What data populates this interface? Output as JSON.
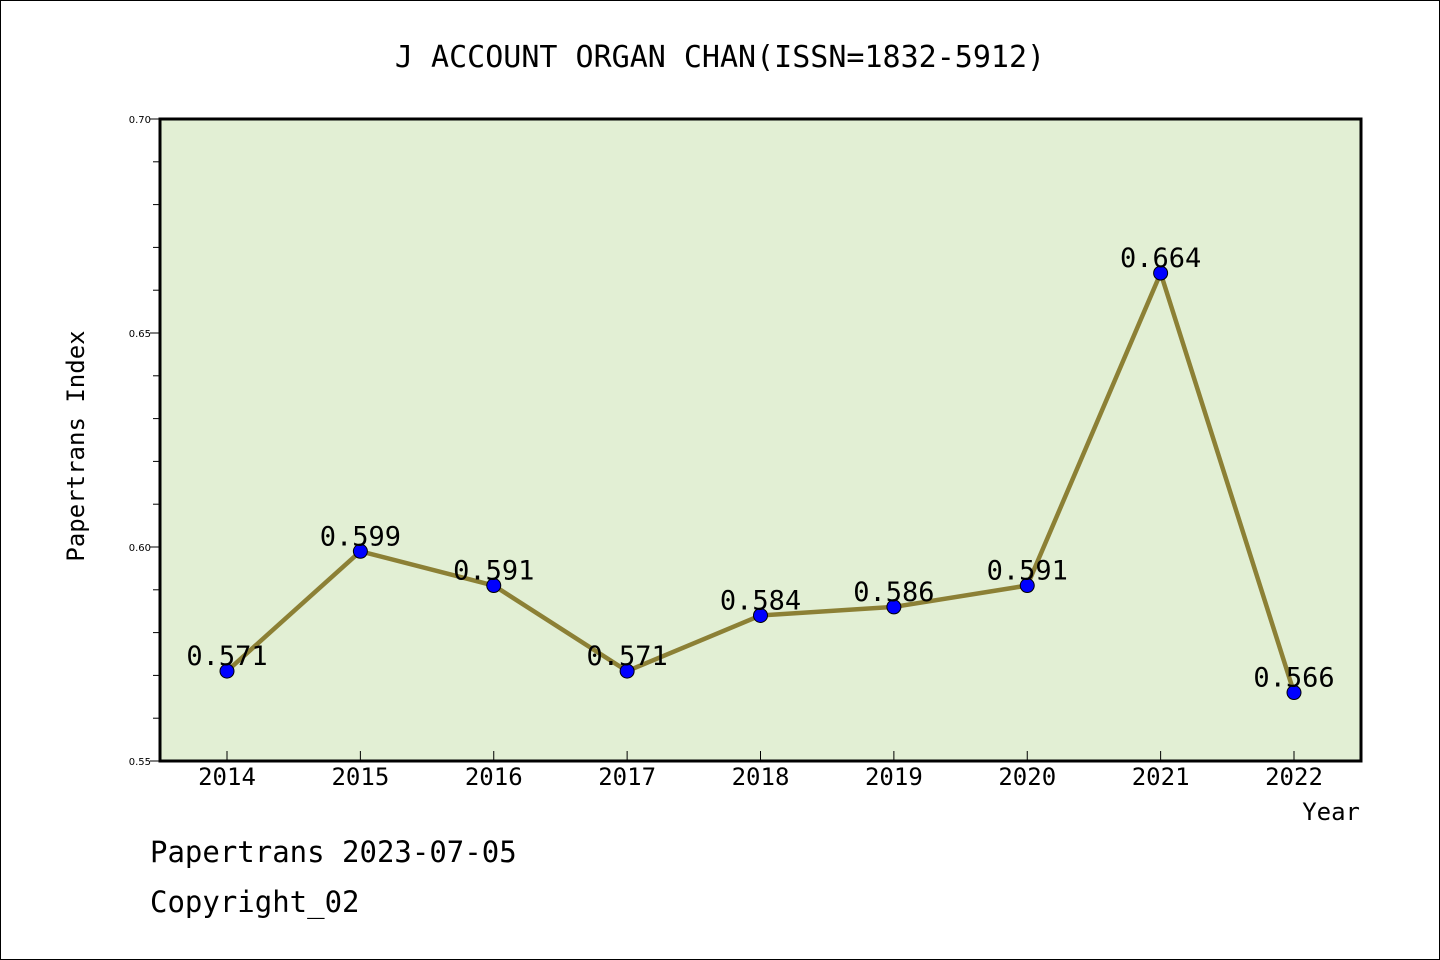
{
  "footer": {
    "line1": "Papertrans 2023-07-05",
    "line2": "Copyright_02"
  },
  "chart_data": {
    "type": "line",
    "title": "J ACCOUNT ORGAN CHAN(ISSN=1832-5912)",
    "xlabel": "Year",
    "ylabel": "Papertrans Index",
    "categories": [
      "2014",
      "2015",
      "2016",
      "2017",
      "2018",
      "2019",
      "2020",
      "2021",
      "2022"
    ],
    "series": [
      {
        "name": "Papertrans Index",
        "values": [
          0.571,
          0.599,
          0.591,
          0.571,
          0.584,
          0.586,
          0.591,
          0.664,
          0.566
        ],
        "labels": [
          "0.571",
          "0.599",
          "0.591",
          "0.571",
          "0.584",
          "0.586",
          "0.591",
          "0.664",
          "0.566"
        ]
      }
    ],
    "ylim": [
      0.55,
      0.7
    ],
    "yticks": [
      0.55,
      0.6,
      0.65,
      0.7
    ],
    "ytick_labels": [
      "0.55",
      "0.60",
      "0.65",
      "0.70"
    ],
    "minor_ytick_step": 0.01,
    "grid": false,
    "colors": {
      "plot_background": "#e2efd4",
      "line": "#8c8035",
      "marker": "#0000ff"
    }
  }
}
